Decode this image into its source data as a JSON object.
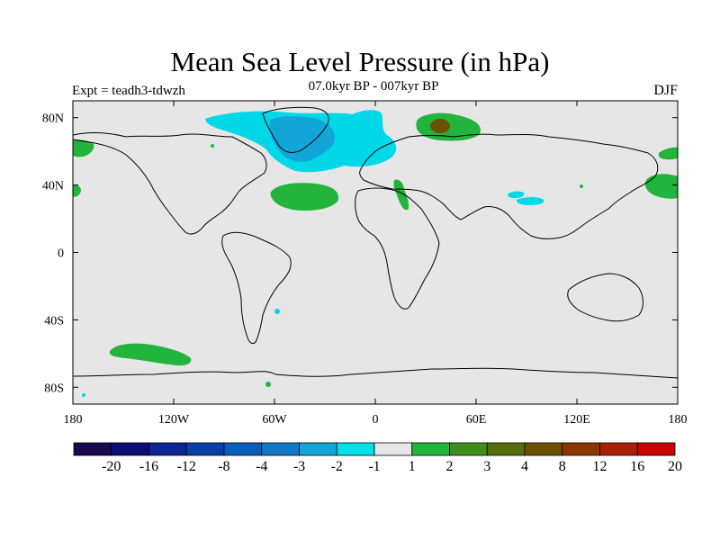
{
  "title": "Mean Sea Level Pressure (in hPa)",
  "subtitle": "07.0kyr BP - 007kyr BP",
  "experiment_label": "Expt = teadh3-tdwzh",
  "season": "DJF",
  "map": {
    "projection": "cylindrical equidistant",
    "lon_range": [
      -180,
      180
    ],
    "lat_range": [
      -90,
      90
    ],
    "lon_ticks": [
      {
        "value": -180,
        "label": "180"
      },
      {
        "value": -120,
        "label": "120W"
      },
      {
        "value": -60,
        "label": "60W"
      },
      {
        "value": 0,
        "label": "0"
      },
      {
        "value": 60,
        "label": "60E"
      },
      {
        "value": 120,
        "label": "120E"
      },
      {
        "value": 180,
        "label": "180"
      }
    ],
    "lat_ticks": [
      {
        "value": 80,
        "label": "80N"
      },
      {
        "value": 40,
        "label": "40N"
      },
      {
        "value": 0,
        "label": "0"
      },
      {
        "value": -40,
        "label": "40S"
      },
      {
        "value": -80,
        "label": "80S"
      }
    ],
    "background_color": "#e6e6e6"
  },
  "colorbar": {
    "labels": [
      "-20",
      "-16",
      "-12",
      "-8",
      "-4",
      "-3",
      "-2",
      "-1",
      "1",
      "2",
      "3",
      "4",
      "8",
      "12",
      "16",
      "20"
    ],
    "colors": [
      "#1a0850",
      "#0d0d78",
      "#0b2593",
      "#0840a8",
      "#0a5db8",
      "#1278c6",
      "#14a5d8",
      "#00e0e8",
      "#e6e6e6",
      "#22b43c",
      "#3e8e1e",
      "#556e0a",
      "#6e5005",
      "#8a3705",
      "#a82005",
      "#cc0000"
    ]
  },
  "anomalies": [
    {
      "name": "north-atlantic-arctic-negative",
      "level": "-2",
      "color": "#00d8e8"
    },
    {
      "name": "greenland-core-negative",
      "level": "-3",
      "color": "#14a5d8"
    },
    {
      "name": "barents-sea-positive",
      "level": "2",
      "color": "#22b43c"
    },
    {
      "name": "barents-sea-core-positive",
      "level": "4",
      "color": "#6e5005"
    },
    {
      "name": "central-atlantic-positive",
      "level": "1",
      "color": "#22b43c"
    },
    {
      "name": "north-africa-positive",
      "level": "1",
      "color": "#22b43c"
    },
    {
      "name": "north-pacific-east-positive",
      "level": "1",
      "color": "#22b43c"
    },
    {
      "name": "north-pacific-west-positive",
      "level": "1",
      "color": "#22b43c"
    },
    {
      "name": "south-pacific-positive",
      "level": "1",
      "color": "#22b43c"
    },
    {
      "name": "central-asia-negative",
      "level": "-1",
      "color": "#00d8e8"
    }
  ]
}
